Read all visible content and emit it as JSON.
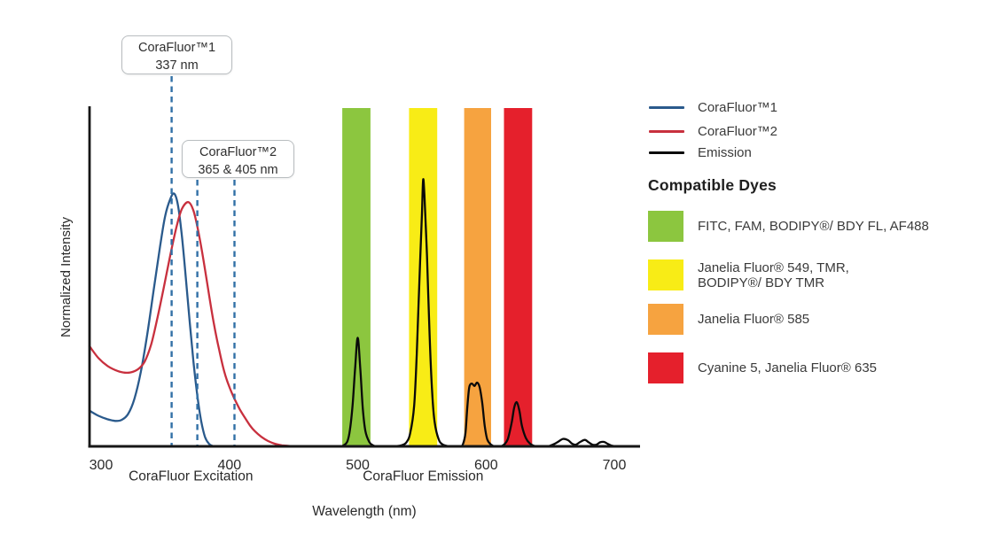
{
  "legend": {
    "items": [
      {
        "id": "corafluor1",
        "label": "CoraFluor™1",
        "color": "#2A5A8C"
      },
      {
        "id": "corafluor2",
        "label": "CoraFluor™2",
        "color": "#C8303E"
      },
      {
        "id": "emission",
        "label": "Emission",
        "color": "#0a0a0a"
      }
    ]
  },
  "compatible_dyes": {
    "heading": "Compatible Dyes",
    "items": [
      {
        "id": "green-filter-dyes",
        "color": "#8CC63F",
        "label": "FITC, FAM, BODIPY®/ BDY FL, AF488"
      },
      {
        "id": "yellow-filter-dyes",
        "color": "#F8EC16",
        "label": "Janelia Fluor® 549, TMR,\nBODIPY®/ BDY TMR"
      },
      {
        "id": "orange-filter-dyes",
        "color": "#F6A340",
        "label": "Janelia Fluor® 585"
      },
      {
        "id": "red-filter-dyes",
        "color": "#E5202C",
        "label": "Cyanine 5, Janelia Fluor® 635"
      }
    ]
  },
  "chart_data": {
    "type": "line",
    "title": "",
    "xlabel": "Wavelength (nm)",
    "ylabel": "Normalized Intensity",
    "x_ticks": [
      "300",
      "400",
      "500",
      "600",
      "700"
    ],
    "x_tick_values": [
      300,
      400,
      500,
      600,
      700
    ],
    "x_range_nm": [
      291,
      715
    ],
    "ylim": [
      0,
      1
    ],
    "grid": false,
    "legend_position": "right",
    "section_labels": [
      {
        "id": "excitation",
        "label": "CoraFluor Excitation",
        "center_nm": 370
      },
      {
        "id": "emission",
        "label": "CoraFluor Emission",
        "center_nm": 551
      }
    ],
    "annotations": [
      {
        "id": "corafluor1",
        "title": "CoraFluor™1",
        "value": "337 nm",
        "dashed_lines_nm": [
          355
        ]
      },
      {
        "id": "corafluor2",
        "title": "CoraFluor™2",
        "value": "365 & 405 nm",
        "dashed_lines_nm": [
          375,
          404
        ]
      }
    ],
    "dashed_line_color": "#3170A6",
    "filter_bands": [
      {
        "id": "green",
        "color": "#8CC63F",
        "nm": [
          488,
          510
        ],
        "dyes": "FITC, FAM, BODIPY®/ BDY FL, AF488"
      },
      {
        "id": "yellow",
        "color": "#F8EC16",
        "nm": [
          540,
          562
        ],
        "dyes": "Janelia Fluor® 549, TMR, BODIPY®/ BDY TMR"
      },
      {
        "id": "orange",
        "color": "#F6A340",
        "nm": [
          583,
          604
        ],
        "dyes": "Janelia Fluor® 585"
      },
      {
        "id": "red",
        "color": "#E5202C",
        "nm": [
          614,
          636
        ],
        "dyes": "Cyanine 5, Janelia Fluor® 635"
      }
    ],
    "series": [
      {
        "id": "corafluor1-excitation",
        "name": "CoraFluor™1",
        "color": "#2A5A8C",
        "peak_label_nm": 337,
        "points": [
          [
            291,
            0.105
          ],
          [
            298,
            0.09
          ],
          [
            305,
            0.08
          ],
          [
            311,
            0.075
          ],
          [
            316,
            0.078
          ],
          [
            321,
            0.095
          ],
          [
            326,
            0.14
          ],
          [
            331,
            0.22
          ],
          [
            336,
            0.33
          ],
          [
            341,
            0.46
          ],
          [
            346,
            0.59
          ],
          [
            350,
            0.68
          ],
          [
            354,
            0.73
          ],
          [
            357,
            0.745
          ],
          [
            360,
            0.71
          ],
          [
            363,
            0.62
          ],
          [
            366,
            0.5
          ],
          [
            369,
            0.37
          ],
          [
            372,
            0.25
          ],
          [
            375,
            0.15
          ],
          [
            378,
            0.075
          ],
          [
            381,
            0.028
          ],
          [
            384,
            0.008
          ],
          [
            387,
            0.001
          ],
          [
            391,
            0
          ]
        ]
      },
      {
        "id": "corafluor2-excitation",
        "name": "CoraFluor™2",
        "color": "#C8303E",
        "peak_label_nm": 365,
        "points": [
          [
            291,
            0.295
          ],
          [
            298,
            0.26
          ],
          [
            305,
            0.237
          ],
          [
            311,
            0.225
          ],
          [
            317,
            0.218
          ],
          [
            323,
            0.218
          ],
          [
            329,
            0.228
          ],
          [
            334,
            0.25
          ],
          [
            339,
            0.3
          ],
          [
            344,
            0.38
          ],
          [
            349,
            0.47
          ],
          [
            354,
            0.565
          ],
          [
            359,
            0.65
          ],
          [
            363,
            0.7
          ],
          [
            368,
            0.72
          ],
          [
            372,
            0.695
          ],
          [
            376,
            0.63
          ],
          [
            380,
            0.545
          ],
          [
            384,
            0.45
          ],
          [
            388,
            0.36
          ],
          [
            392,
            0.285
          ],
          [
            396,
            0.22
          ],
          [
            400,
            0.175
          ],
          [
            404,
            0.14
          ],
          [
            408,
            0.11
          ],
          [
            412,
            0.085
          ],
          [
            416,
            0.062
          ],
          [
            420,
            0.044
          ],
          [
            425,
            0.028
          ],
          [
            430,
            0.016
          ],
          [
            435,
            0.008
          ],
          [
            441,
            0.003
          ],
          [
            448,
            0.001
          ],
          [
            456,
            0
          ]
        ]
      },
      {
        "id": "emission",
        "name": "Emission",
        "color": "#0a0a0a",
        "points": [
          [
            456,
            0
          ],
          [
            470,
            0
          ],
          [
            485,
            0
          ],
          [
            489,
            0.003
          ],
          [
            492,
            0.015
          ],
          [
            494,
            0.05
          ],
          [
            496,
            0.12
          ],
          [
            498,
            0.23
          ],
          [
            500,
            0.32
          ],
          [
            502,
            0.23
          ],
          [
            504,
            0.11
          ],
          [
            506,
            0.045
          ],
          [
            509,
            0.013
          ],
          [
            512,
            0.003
          ],
          [
            516,
            0
          ],
          [
            528,
            0
          ],
          [
            534,
            0.003
          ],
          [
            538,
            0.012
          ],
          [
            541,
            0.04
          ],
          [
            544,
            0.12
          ],
          [
            546,
            0.27
          ],
          [
            548,
            0.48
          ],
          [
            550,
            0.68
          ],
          [
            551,
            0.785
          ],
          [
            552,
            0.74
          ],
          [
            554,
            0.56
          ],
          [
            556,
            0.33
          ],
          [
            558,
            0.16
          ],
          [
            560,
            0.07
          ],
          [
            563,
            0.022
          ],
          [
            566,
            0.006
          ],
          [
            570,
            0.001
          ],
          [
            576,
            0
          ],
          [
            580,
            0
          ],
          [
            582,
            0.006
          ],
          [
            584,
            0.04
          ],
          [
            585.5,
            0.12
          ],
          [
            587,
            0.175
          ],
          [
            589,
            0.185
          ],
          [
            591,
            0.178
          ],
          [
            593,
            0.188
          ],
          [
            595,
            0.175
          ],
          [
            597,
            0.13
          ],
          [
            599,
            0.06
          ],
          [
            601,
            0.02
          ],
          [
            604,
            0.005
          ],
          [
            607,
            0
          ],
          [
            611,
            0
          ],
          [
            614,
            0.005
          ],
          [
            617,
            0.022
          ],
          [
            620,
            0.07
          ],
          [
            622,
            0.115
          ],
          [
            624,
            0.13
          ],
          [
            626,
            0.105
          ],
          [
            628,
            0.06
          ],
          [
            631,
            0.025
          ],
          [
            634,
            0.009
          ],
          [
            637,
            0.002
          ],
          [
            641,
            0
          ],
          [
            648,
            0
          ],
          [
            652,
            0.005
          ],
          [
            656,
            0.013
          ],
          [
            660,
            0.022
          ],
          [
            664,
            0.018
          ],
          [
            667,
            0.008
          ],
          [
            670,
            0.005
          ],
          [
            673,
            0.012
          ],
          [
            677,
            0.019
          ],
          [
            680,
            0.012
          ],
          [
            683,
            0.005
          ],
          [
            686,
            0.005
          ],
          [
            689,
            0.012
          ],
          [
            692,
            0.013
          ],
          [
            695,
            0.007
          ],
          [
            698,
            0.002
          ],
          [
            702,
            0
          ],
          [
            713,
            0
          ]
        ]
      }
    ]
  }
}
